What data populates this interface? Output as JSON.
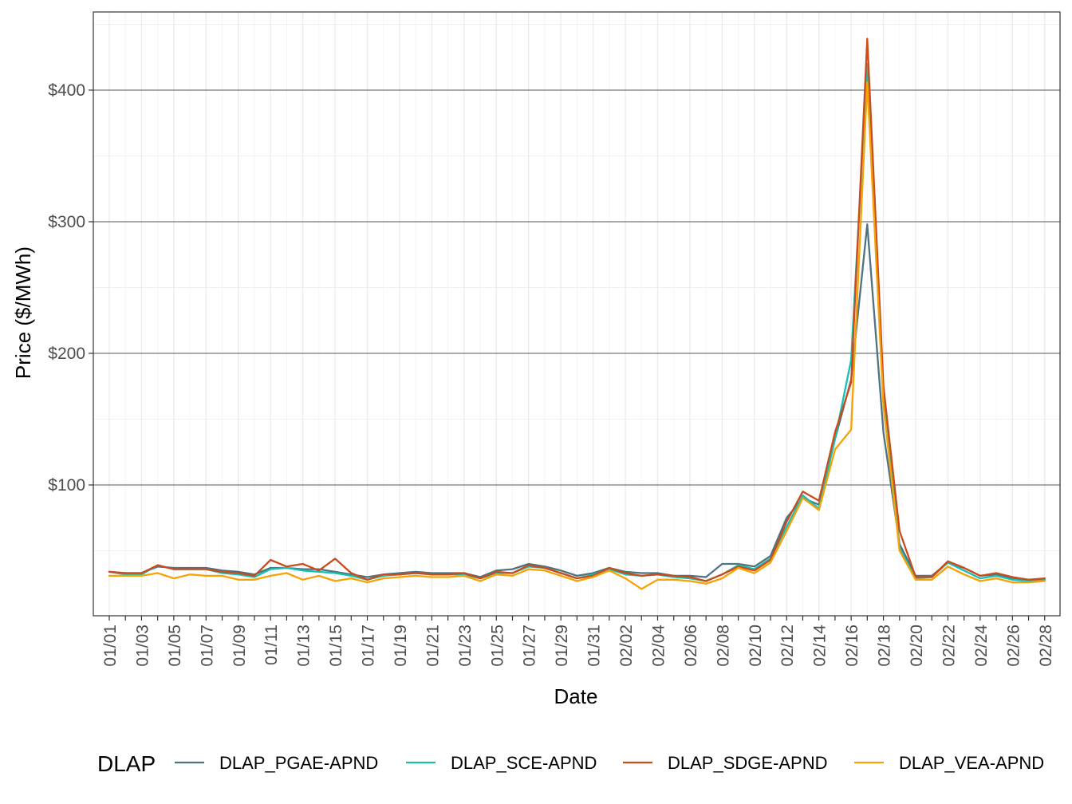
{
  "chart_data": {
    "type": "line",
    "title": "",
    "xlabel": "Date",
    "ylabel": "Price ($/MWh)",
    "ylim": [
      0,
      460
    ],
    "y_ticks": [
      100,
      200,
      300,
      400
    ],
    "y_tick_labels": [
      "$100",
      "$200",
      "$300",
      "$400"
    ],
    "x_tick_labels": [
      "01/01",
      "01/03",
      "01/05",
      "01/07",
      "01/09",
      "01/11",
      "01/13",
      "01/15",
      "01/17",
      "01/19",
      "01/21",
      "01/23",
      "01/25",
      "01/27",
      "01/29",
      "01/31",
      "02/02",
      "02/04",
      "02/06",
      "02/08",
      "02/10",
      "02/12",
      "02/14",
      "02/16",
      "02/18",
      "02/20",
      "02/22",
      "02/24",
      "02/26",
      "02/28"
    ],
    "x": [
      "01/01",
      "01/02",
      "01/03",
      "01/04",
      "01/05",
      "01/06",
      "01/07",
      "01/08",
      "01/09",
      "01/10",
      "01/11",
      "01/12",
      "01/13",
      "01/14",
      "01/15",
      "01/16",
      "01/17",
      "01/18",
      "01/19",
      "01/20",
      "01/21",
      "01/22",
      "01/23",
      "01/24",
      "01/25",
      "01/26",
      "01/27",
      "01/28",
      "01/29",
      "01/30",
      "01/31",
      "02/01",
      "02/02",
      "02/03",
      "02/04",
      "02/05",
      "02/06",
      "02/07",
      "02/08",
      "02/09",
      "02/10",
      "02/11",
      "02/12",
      "02/13",
      "02/14",
      "02/15",
      "02/16",
      "02/17",
      "02/18",
      "02/19",
      "02/20",
      "02/21",
      "02/22",
      "02/23",
      "02/24",
      "02/25",
      "02/26",
      "02/27",
      "02/28"
    ],
    "grid": true,
    "legend_title": "DLAP",
    "legend_position": "bottom",
    "series": [
      {
        "name": "DLAP_PGAE-APND",
        "color": "#4e7381",
        "values": [
          34,
          33,
          33,
          38,
          37,
          37,
          37,
          35,
          34,
          32,
          37,
          37,
          36,
          36,
          34,
          32,
          30,
          32,
          33,
          34,
          33,
          33,
          33,
          30,
          35,
          36,
          40,
          38,
          35,
          31,
          33,
          37,
          34,
          33,
          33,
          31,
          31,
          30,
          40,
          40,
          38,
          46,
          75,
          90,
          85,
          135,
          180,
          298,
          140,
          55,
          31,
          31,
          41,
          37,
          31,
          32,
          29,
          28,
          28
        ]
      },
      {
        "name": "DLAP_SCE-APND",
        "color": "#17c0b5",
        "values": [
          34,
          32,
          32,
          39,
          36,
          36,
          36,
          33,
          32,
          30,
          36,
          37,
          35,
          34,
          33,
          31,
          28,
          31,
          32,
          33,
          32,
          32,
          32,
          29,
          33,
          33,
          38,
          37,
          33,
          29,
          32,
          36,
          32,
          31,
          32,
          30,
          29,
          27,
          32,
          39,
          36,
          44,
          68,
          92,
          82,
          135,
          195,
          420,
          165,
          52,
          29,
          30,
          41,
          35,
          29,
          31,
          28,
          27,
          28
        ]
      },
      {
        "name": "DLAP_SDGE-APND",
        "color": "#cb4b1d",
        "values": [
          34,
          33,
          33,
          39,
          36,
          36,
          36,
          34,
          33,
          31,
          43,
          38,
          40,
          35,
          44,
          33,
          28,
          32,
          32,
          33,
          32,
          32,
          33,
          29,
          34,
          33,
          39,
          37,
          33,
          29,
          31,
          37,
          33,
          31,
          32,
          31,
          30,
          27,
          32,
          38,
          35,
          43,
          72,
          95,
          88,
          140,
          178,
          439,
          175,
          65,
          30,
          30,
          42,
          37,
          31,
          33,
          30,
          28,
          29
        ]
      },
      {
        "name": "DLAP_VEA-APND",
        "color": "#f5a306",
        "values": [
          31,
          31,
          31,
          33,
          29,
          32,
          31,
          31,
          28,
          28,
          31,
          33,
          28,
          31,
          27,
          29,
          26,
          29,
          30,
          31,
          30,
          30,
          31,
          27,
          32,
          31,
          36,
          35,
          31,
          27,
          30,
          35,
          29,
          21,
          28,
          28,
          27,
          25,
          29,
          37,
          33,
          41,
          65,
          90,
          81,
          127,
          142,
          406,
          160,
          50,
          28,
          28,
          38,
          32,
          27,
          29,
          26,
          26,
          27
        ]
      }
    ]
  }
}
